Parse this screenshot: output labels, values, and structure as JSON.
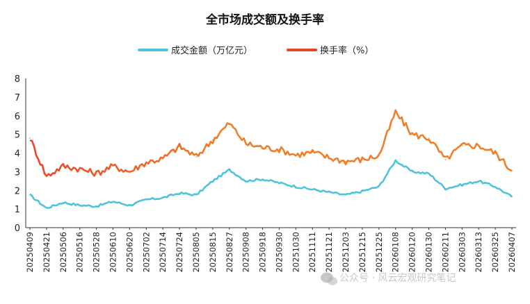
{
  "chart_data": {
    "type": "line",
    "title": "全市场成交额及换手率",
    "xlabel": "",
    "ylabel": "",
    "ylim": [
      0,
      8
    ],
    "yticks": [
      "0",
      "1",
      "2",
      "3",
      "4",
      "5",
      "6",
      "7",
      "8"
    ],
    "grid": false,
    "legend_position": "top-center",
    "x_tick_labels": [
      "20250409",
      "20250421",
      "20250506",
      "20250516",
      "20250528",
      "20250610",
      "20250620",
      "20250702",
      "20250714",
      "20250724",
      "20250805",
      "20250815",
      "20250827",
      "20250908",
      "20250918",
      "20250930",
      "20251030",
      "20251111",
      "20251121",
      "20251203",
      "20251215",
      "20251225",
      "20260108",
      "20260120",
      "20260130",
      "20260211",
      "20260303",
      "20260313",
      "20260325",
      "20260407"
    ],
    "series": [
      {
        "name": "成交金额（万亿元）",
        "color": "#4FC3D9",
        "x": [
          "20250409",
          "20250421",
          "20250506",
          "20250516",
          "20250528",
          "20250610",
          "20250620",
          "20250702",
          "20250714",
          "20250724",
          "20250805",
          "20250815",
          "20250827",
          "20250908",
          "20250918",
          "20250930",
          "20251030",
          "20251111",
          "20251121",
          "20251203",
          "20251215",
          "20251225",
          "20260108",
          "20260120",
          "20260130",
          "20260211",
          "20260303",
          "20260313",
          "20260325",
          "20260407"
        ],
        "values": [
          1.75,
          1.05,
          1.35,
          1.2,
          1.15,
          1.4,
          1.2,
          1.5,
          1.6,
          1.85,
          1.75,
          2.5,
          3.1,
          2.5,
          2.6,
          2.4,
          2.2,
          2.05,
          1.9,
          1.75,
          1.95,
          2.2,
          3.6,
          3.0,
          2.9,
          2.1,
          2.3,
          2.5,
          2.2,
          1.65
        ]
      },
      {
        "name": "换手率（%）",
        "color": "#E8452C",
        "color_secondary": "#F07E2A",
        "x": [
          "20250409",
          "20250421",
          "20250506",
          "20250516",
          "20250528",
          "20250610",
          "20250620",
          "20250702",
          "20250714",
          "20250724",
          "20250805",
          "20250815",
          "20250827",
          "20250908",
          "20250918",
          "20250930",
          "20251030",
          "20251111",
          "20251121",
          "20251203",
          "20251215",
          "20251225",
          "20260108",
          "20260120",
          "20260130",
          "20260211",
          "20260303",
          "20260313",
          "20260325",
          "20260407"
        ],
        "values": [
          4.8,
          2.75,
          3.3,
          3.15,
          2.9,
          3.3,
          3.0,
          3.5,
          3.7,
          4.35,
          3.8,
          4.7,
          5.6,
          4.5,
          4.3,
          4.2,
          3.9,
          4.05,
          3.75,
          3.55,
          3.65,
          3.85,
          6.2,
          5.0,
          4.8,
          3.65,
          4.4,
          4.4,
          4.0,
          3.05
        ]
      }
    ]
  },
  "watermark": {
    "text": "公众号 · 风云宏观研究笔记",
    "icon": "wechat-icon"
  }
}
